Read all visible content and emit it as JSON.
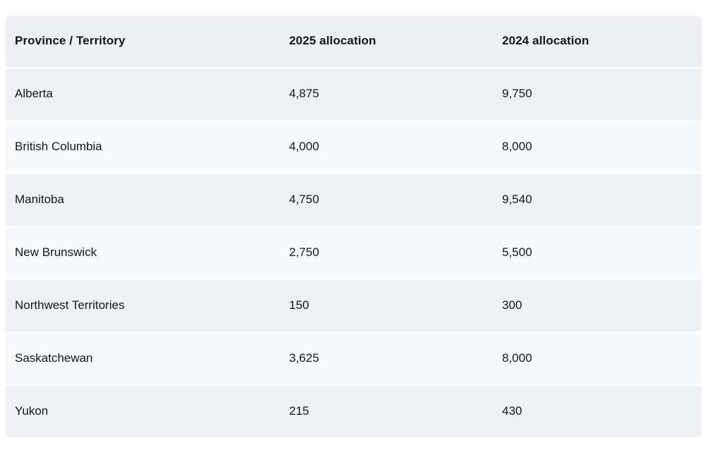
{
  "table": {
    "headers": [
      "Province / Territory",
      "2025 allocation",
      "2024 allocation"
    ],
    "rows": [
      {
        "province": "Alberta",
        "alloc_2025": "4,875",
        "alloc_2024": "9,750"
      },
      {
        "province": "British Columbia",
        "alloc_2025": "4,000",
        "alloc_2024": "8,000"
      },
      {
        "province": "Manitoba",
        "alloc_2025": "4,750",
        "alloc_2024": "9,540"
      },
      {
        "province": "New Brunswick",
        "alloc_2025": "2,750",
        "alloc_2024": "5,500"
      },
      {
        "province": "Northwest Territories",
        "alloc_2025": "150",
        "alloc_2024": "300"
      },
      {
        "province": "Saskatchewan",
        "alloc_2025": "3,625",
        "alloc_2024": "8,000"
      },
      {
        "province": "Yukon",
        "alloc_2025": "215",
        "alloc_2024": "430"
      }
    ],
    "colors": {
      "header_bg": "#edeff2",
      "row_gray_bg": "#eef0f3",
      "row_light_bg": "#f8f9fa",
      "text": "#14161b",
      "page_bg": "#ffffff",
      "row_divider": "#ffffff"
    }
  },
  "chart_data": {
    "type": "table",
    "title": "",
    "columns": [
      "Province / Territory",
      "2025 allocation",
      "2024 allocation"
    ],
    "categories": [
      "Alberta",
      "British Columbia",
      "Manitoba",
      "New Brunswick",
      "Northwest Territories",
      "Saskatchewan",
      "Yukon"
    ],
    "series": [
      {
        "name": "2025 allocation",
        "values": [
          4875,
          4000,
          4750,
          2750,
          150,
          3625,
          215
        ]
      },
      {
        "name": "2024 allocation",
        "values": [
          9750,
          8000,
          9540,
          5500,
          300,
          8000,
          430
        ]
      }
    ],
    "layout_hints": {
      "striped_rows": true,
      "header_row": true,
      "grid": "off",
      "legend": "none"
    }
  }
}
